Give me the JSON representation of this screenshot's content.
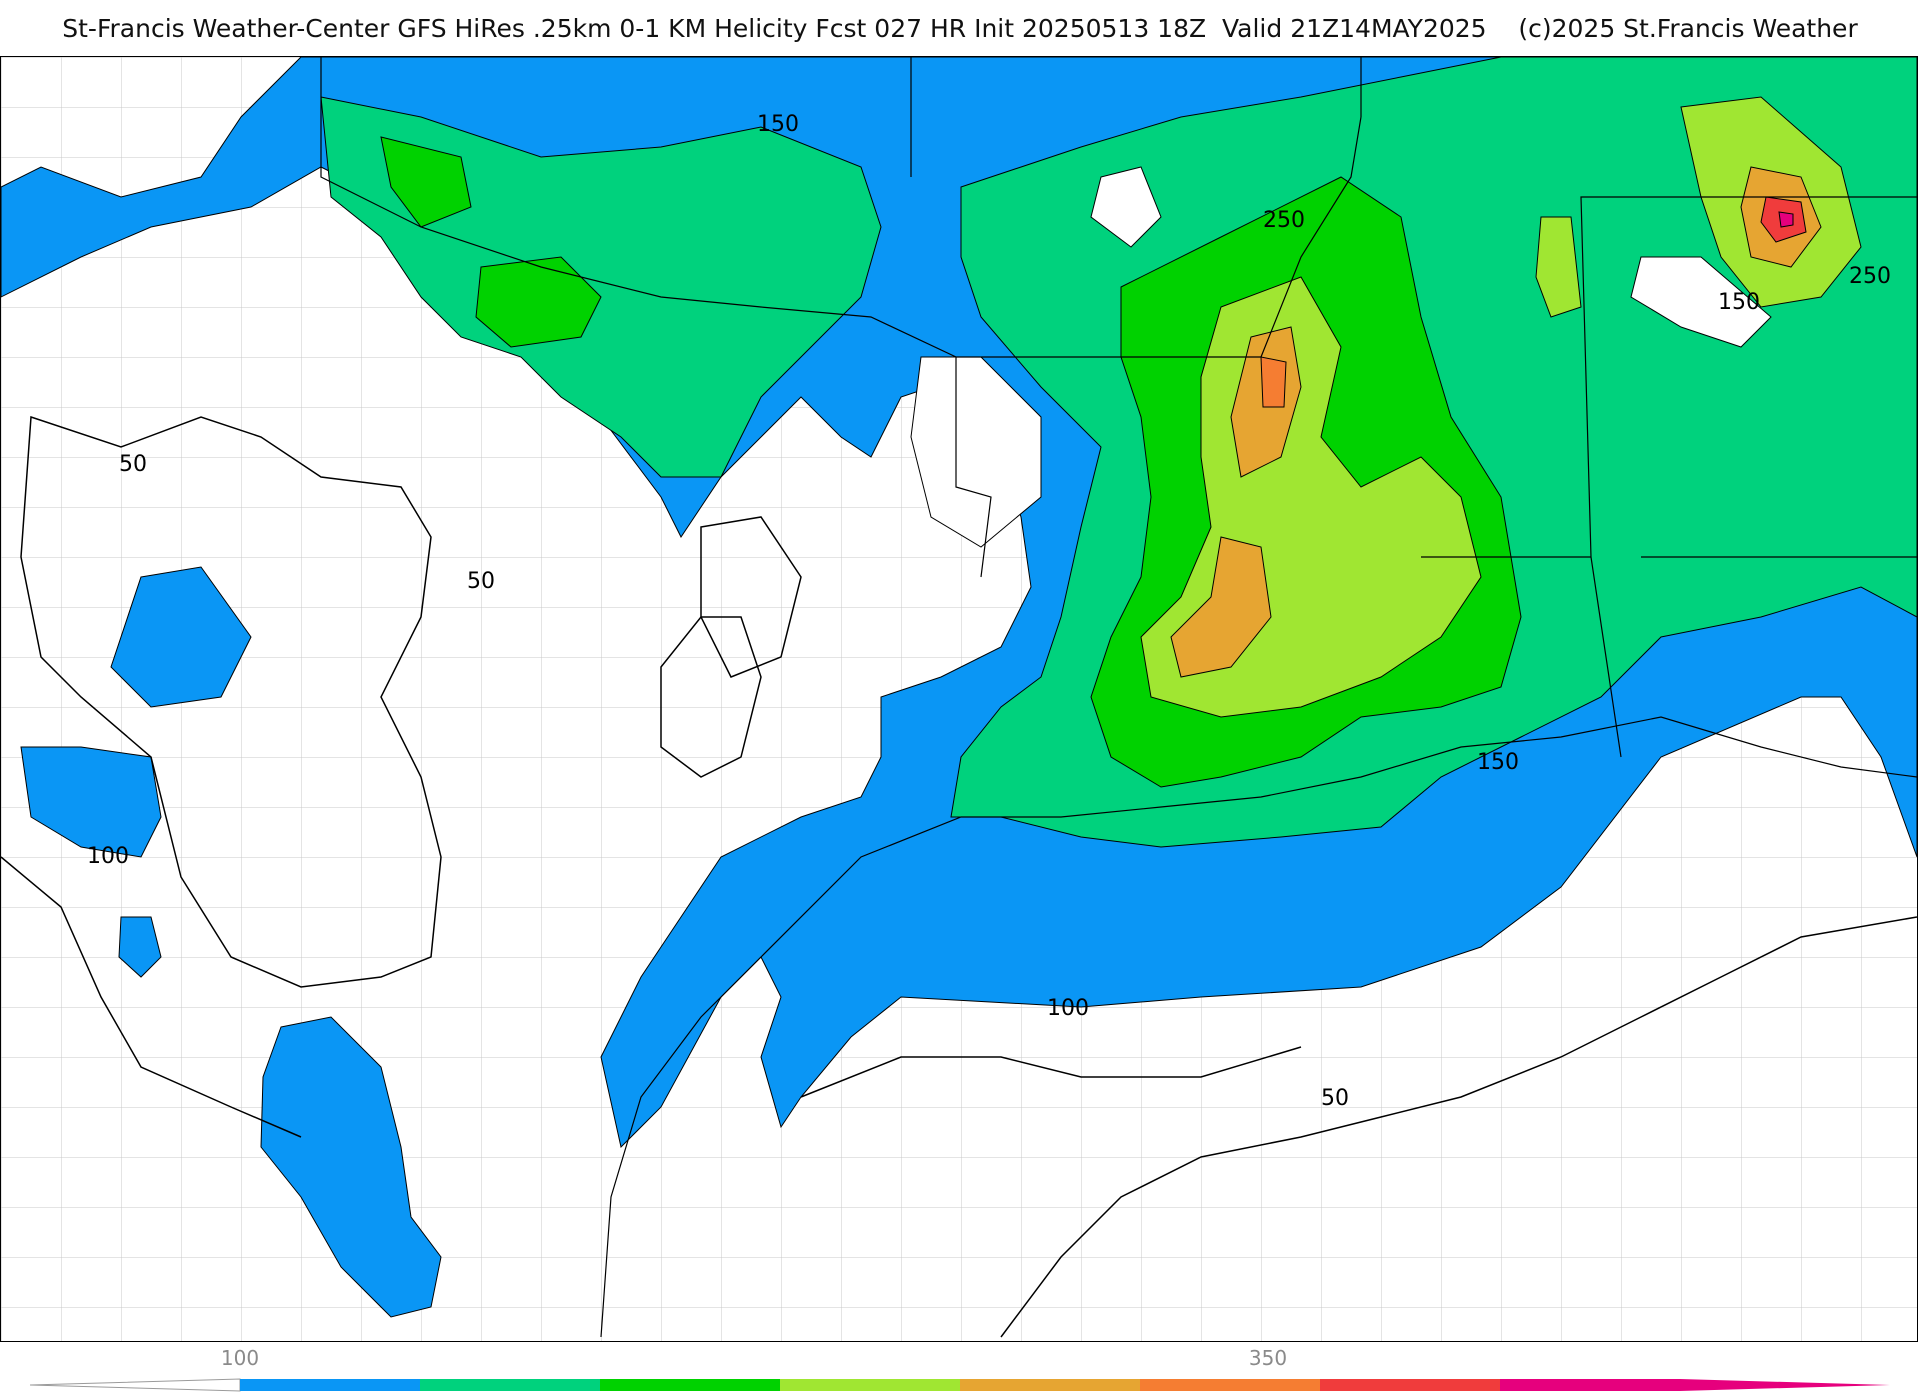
{
  "title": "St-Francis Weather-Center GFS HiRes .25km 0-1 KM Helicity Fcst 027 HR Init 20250513 18Z  Valid 21Z14MAY2025    (c)2025 St.Francis Weather",
  "map": {
    "field": "0-1 KM Helicity",
    "contour_labels": [
      {
        "text": "150"
      },
      {
        "text": "250"
      },
      {
        "text": "150"
      },
      {
        "text": "250"
      },
      {
        "text": "50"
      },
      {
        "text": "50"
      },
      {
        "text": "100"
      },
      {
        "text": "150"
      },
      {
        "text": "100"
      },
      {
        "text": "50"
      }
    ],
    "fill_colors": {
      "level_100": "#0a96f5",
      "level_150": "#00d27d",
      "level_200": "#00d200",
      "level_250": "#a0e632",
      "level_300": "#e6a532",
      "level_350": "#f57d32",
      "level_400": "#f03c3c",
      "level_450": "#e6007d"
    }
  },
  "colorbar": {
    "tick_labels": [
      {
        "text": "100"
      },
      {
        "text": "350"
      }
    ],
    "segments": [
      "#0a96f5",
      "#00d27d",
      "#00d200",
      "#a0e632",
      "#e6a532",
      "#f57d32",
      "#f03c3c",
      "#e6007d"
    ]
  }
}
